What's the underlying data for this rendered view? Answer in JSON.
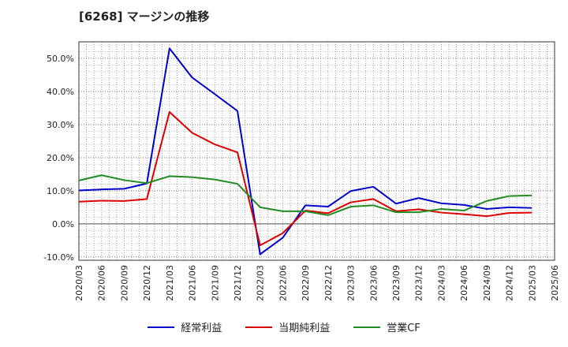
{
  "title": "[6268]  マージンの推移",
  "chart_data": {
    "type": "line",
    "title": "[6268]  マージンの推移",
    "x": [
      "2020/03",
      "2020/06",
      "2020/09",
      "2020/12",
      "2021/03",
      "2021/06",
      "2021/09",
      "2021/12",
      "2022/03",
      "2022/06",
      "2022/09",
      "2022/12",
      "2023/03",
      "2023/06",
      "2023/09",
      "2023/12",
      "2024/03",
      "2024/06",
      "2024/09",
      "2024/12",
      "2025/03",
      "2025/06"
    ],
    "ylim": [
      -11,
      55
    ],
    "yticks": [
      -10,
      0,
      10,
      20,
      30,
      40,
      50
    ],
    "ytick_labels": [
      "-10.0%",
      "0.0%",
      "10.0%",
      "20.0%",
      "30.0%",
      "40.0%",
      "50.0%"
    ],
    "grid": true,
    "legend_position": "bottom",
    "series": [
      {
        "name": "経常利益",
        "color": "#0000cc",
        "values": [
          10.1,
          10.4,
          10.6,
          12.2,
          53.0,
          44.2,
          39.2,
          34.1,
          -9.2,
          -4.2,
          5.6,
          5.2,
          9.9,
          11.2,
          6.1,
          7.8,
          6.2,
          5.7,
          4.5,
          5.0,
          4.8,
          null
        ]
      },
      {
        "name": "当期純利益",
        "color": "#dd0000",
        "values": [
          6.7,
          7.0,
          6.9,
          7.5,
          33.8,
          27.5,
          24.0,
          21.6,
          -6.5,
          -2.8,
          4.0,
          3.2,
          6.5,
          7.5,
          3.8,
          4.4,
          3.4,
          2.9,
          2.3,
          3.3,
          3.4,
          null
        ]
      },
      {
        "name": "営業CF",
        "color": "#228b22",
        "values": [
          13.1,
          14.7,
          13.2,
          12.3,
          14.4,
          14.1,
          13.4,
          12.1,
          5.0,
          3.8,
          3.8,
          2.6,
          5.2,
          5.6,
          3.5,
          3.5,
          4.5,
          4.0,
          6.9,
          8.4,
          8.6,
          null
        ]
      }
    ]
  }
}
